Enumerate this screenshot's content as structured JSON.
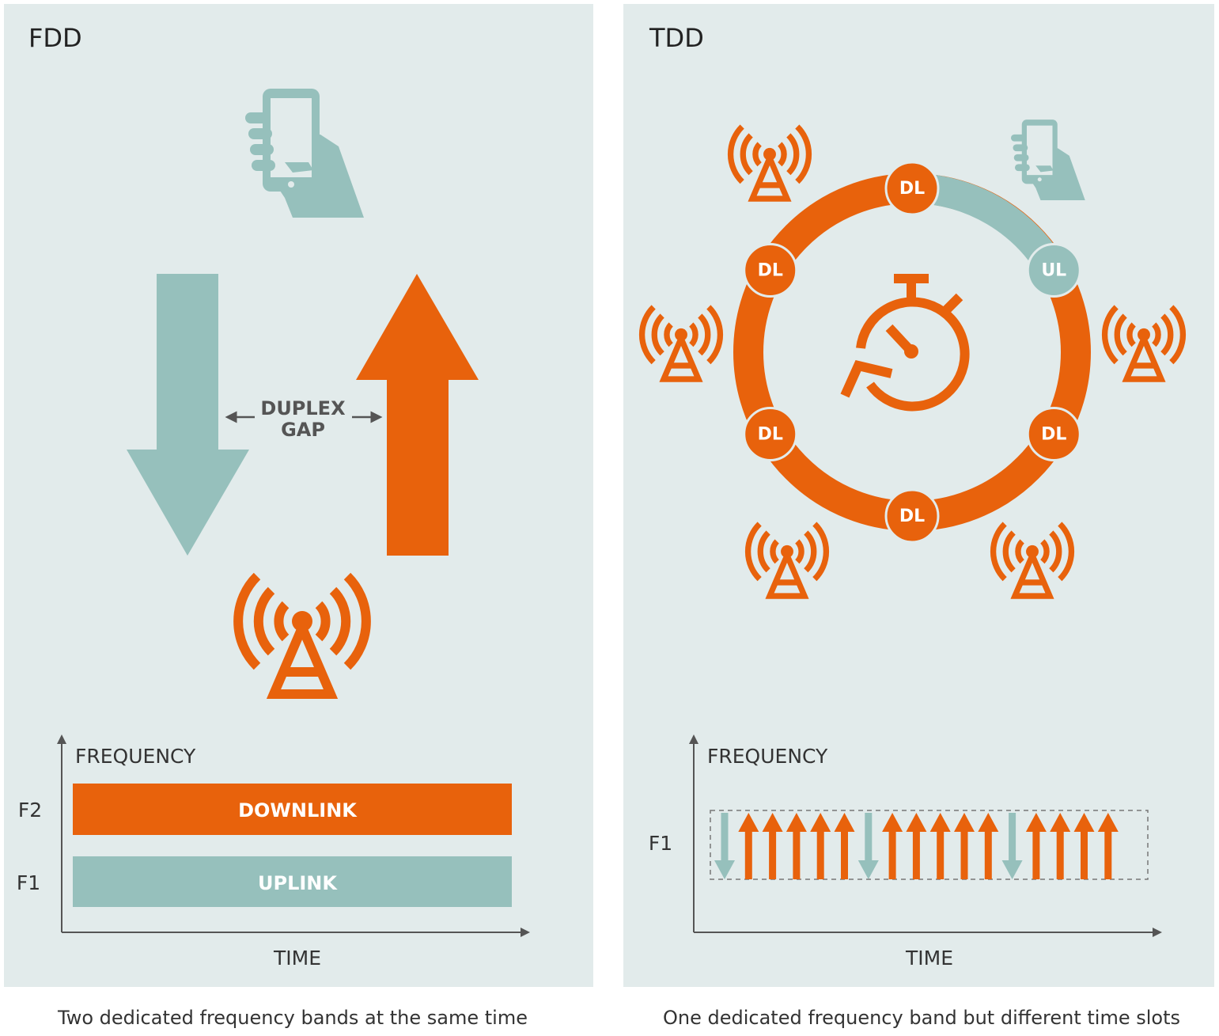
{
  "fdd": {
    "title": "FDD",
    "gap_label": [
      "DUPLEX",
      "GAP"
    ],
    "axis_y": "FREQUENCY",
    "axis_x": "TIME",
    "bands": [
      {
        "label": "F2",
        "name": "DOWNLINK"
      },
      {
        "label": "F1",
        "name": "UPLINK"
      }
    ],
    "caption": "Two dedicated frequency bands at the same time"
  },
  "tdd": {
    "title": "TDD",
    "ring_nodes": [
      "DL",
      "UL",
      "DL",
      "DL",
      "DL",
      "DL"
    ],
    "axis_y": "FREQUENCY",
    "axis_x": "TIME",
    "band_label": "F1",
    "caption": "One dedicated frequency band but different time slots"
  }
}
